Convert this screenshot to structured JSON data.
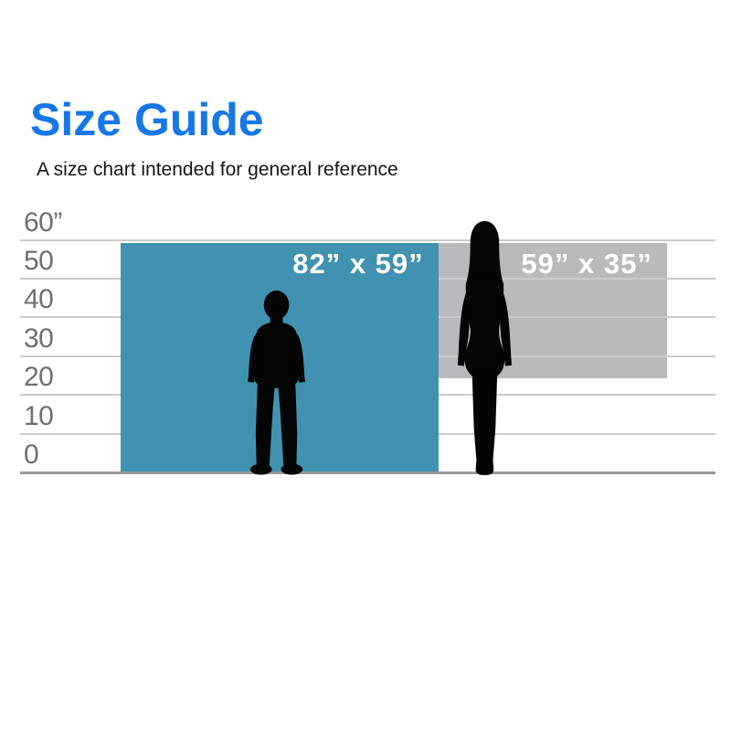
{
  "header": {
    "title": "Size Guide",
    "subtitle": "A size chart intended for general reference"
  },
  "colors": {
    "title_blue": "#1677e8",
    "gridline": "#cbcbcb",
    "baseline": "#95989a",
    "tick_text": "#6f6f6f",
    "large_rect": "#4192b0",
    "small_rect": "#b8babc",
    "rect_label_text": "#ffffff",
    "silhouette": "#050505"
  },
  "chart_data": {
    "type": "bar",
    "variant": "size-comparison-guide",
    "title": "Size Guide",
    "subtitle": "A size chart intended for general reference",
    "y_axis": {
      "unit": "inches",
      "ylim": [
        0,
        60
      ],
      "tick_step": 10,
      "ticks": [
        "60”",
        "50",
        "40",
        "30",
        "20",
        "10",
        "0"
      ],
      "grid": true
    },
    "legend": false,
    "items": [
      {
        "name": "large-size",
        "label": "82” x 59”",
        "width_inches": 82,
        "height_inches": 59,
        "x_offset_inches": 0,
        "top_inches": 59,
        "bottom_inches": 0,
        "color": "#4192b0"
      },
      {
        "name": "small-size",
        "label": "59” x 35”",
        "width_inches": 59,
        "height_inches": 35,
        "x_offset_inches": 82,
        "top_inches": 59,
        "bottom_inches": 24,
        "color": "#b8babc"
      }
    ],
    "reference_figures": [
      {
        "name": "child-silhouette",
        "approx_height_inches": 48
      },
      {
        "name": "adult-woman-silhouette",
        "approx_height_inches": 66
      }
    ]
  }
}
